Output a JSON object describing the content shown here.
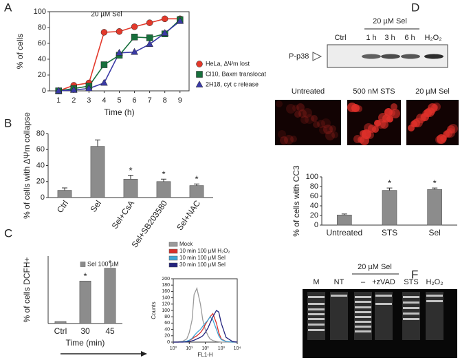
{
  "panel_labels": [
    "A",
    "B",
    "C",
    "D",
    "E",
    "F"
  ],
  "chart_data": [
    {
      "type": "line",
      "title": "20 µM Sel",
      "x_label": "Time (h)",
      "y_label": "% of cells",
      "x": [
        1,
        2,
        3,
        4,
        5,
        6,
        7,
        8,
        9
      ],
      "xlim": [
        0.4,
        9.6
      ],
      "xticks": [
        1,
        2,
        3,
        4,
        5,
        6,
        7,
        8,
        9
      ],
      "ylim": [
        0,
        100
      ],
      "yticks": [
        0,
        20,
        40,
        60,
        80,
        100
      ],
      "series": [
        {
          "name": "HeLa, ΔΨm lost",
          "color": "#e3392b",
          "marker": "circle",
          "values": [
            0,
            7,
            10,
            74,
            75,
            81,
            86,
            91,
            91
          ]
        },
        {
          "name": "Cl10, Baxm translocat",
          "color": "#17703c",
          "marker": "square",
          "values": [
            0,
            3,
            6,
            33,
            45,
            68,
            67,
            72,
            90
          ]
        },
        {
          "name": "2H18, cyt c release",
          "color": "#3a3aa6",
          "marker": "triangle",
          "values": [
            0,
            1,
            3,
            10,
            48,
            49,
            59,
            73,
            88
          ]
        }
      ]
    },
    {
      "type": "bar",
      "y_label": "% of cells with ΔΨm collapse",
      "color": "#8c8c8c",
      "categories": [
        "Ctrl",
        "Sel",
        "Sel+CsA",
        "Sel+SB203580",
        "Sel+NAC"
      ],
      "values": [
        9,
        64,
        23,
        20,
        15
      ],
      "errors": [
        3,
        8,
        5,
        3,
        2
      ],
      "value_annotations": [
        null,
        null,
        "*",
        "*",
        "*"
      ],
      "ylim": [
        0,
        80
      ],
      "yticks": [
        0,
        20,
        40,
        60,
        80
      ]
    },
    {
      "type": "bar",
      "y_label": "% of cells DCFH+",
      "x_label": "Time (min)",
      "color": "#8c8c8c",
      "categories": [
        "Ctrl",
        "30",
        "45"
      ],
      "series": [
        {
          "name": "Sel 100 µM",
          "color": "#8c8c8c",
          "values": [
            3,
            63,
            82
          ]
        }
      ],
      "value_annotations": [
        null,
        "*",
        "*"
      ],
      "ylim": [
        0,
        100
      ]
    },
    {
      "type": "line",
      "log_x": true,
      "x_label": "FL1-H",
      "y_label": "Counts",
      "x": [
        1,
        2,
        4,
        7,
        10,
        15,
        20,
        30,
        50,
        70,
        100,
        150,
        200,
        300,
        500,
        700,
        1000,
        2000,
        5000,
        10000
      ],
      "xlim": [
        1,
        10000
      ],
      "xticks": [
        {
          "value": 1,
          "label": "10⁰"
        },
        {
          "value": 10,
          "label": "10¹"
        },
        {
          "value": 100,
          "label": "10²"
        },
        {
          "value": 1000,
          "label": "10³"
        },
        {
          "value": 10000,
          "label": "10⁴"
        }
      ],
      "ylim": [
        0,
        200
      ],
      "yticks": [
        0,
        20,
        40,
        60,
        80,
        100,
        120,
        140,
        160,
        180,
        200
      ],
      "series": [
        {
          "name": "Mock",
          "color": "#9a9a9a",
          "values": [
            0,
            1,
            3,
            10,
            30,
            70,
            150,
            170,
            120,
            70,
            40,
            20,
            10,
            5,
            2,
            1,
            0,
            0,
            0,
            0
          ]
        },
        {
          "name": "10 min 100 µM H₂O₂",
          "color": "#d9302a",
          "values": [
            0,
            0,
            1,
            2,
            5,
            10,
            15,
            20,
            30,
            40,
            55,
            70,
            80,
            90,
            60,
            30,
            10,
            2,
            0,
            0
          ]
        },
        {
          "name": "10 min 100 µM Sel",
          "color": "#3fa6d6",
          "values": [
            0,
            0,
            1,
            3,
            6,
            12,
            20,
            30,
            40,
            50,
            60,
            70,
            80,
            70,
            40,
            20,
            8,
            2,
            0,
            0
          ]
        },
        {
          "name": "30 min 100 µM Sel",
          "color": "#23237e",
          "values": [
            0,
            0,
            0,
            1,
            2,
            4,
            6,
            10,
            15,
            20,
            30,
            45,
            60,
            80,
            100,
            95,
            60,
            15,
            2,
            0
          ]
        }
      ]
    },
    {
      "type": "bar",
      "y_label": "% of cells with CC3",
      "color": "#8c8c8c",
      "categories": [
        "Untreated",
        "STS",
        "Sel"
      ],
      "values": [
        21,
        72,
        74
      ],
      "errors": [
        2,
        5,
        3
      ],
      "value_annotations": [
        null,
        "*",
        "*"
      ],
      "ylim": [
        0,
        100
      ],
      "yticks": [
        0,
        20,
        40,
        60,
        80,
        100
      ]
    }
  ],
  "western_blot": {
    "treatment": "20 µM Sel",
    "lanes": [
      "Ctrl",
      "1 h",
      "3 h",
      "6 h",
      "H₂O₂"
    ],
    "protein": "P-p38"
  },
  "microscopy": {
    "panels": [
      "Untreated",
      "500 nM STS",
      "20 µM Sel"
    ]
  },
  "gel": {
    "treatment": "20 µM Sel",
    "lanes": [
      "M",
      "NT",
      "–",
      "+zVAD",
      "STS",
      "H₂O₂"
    ]
  }
}
